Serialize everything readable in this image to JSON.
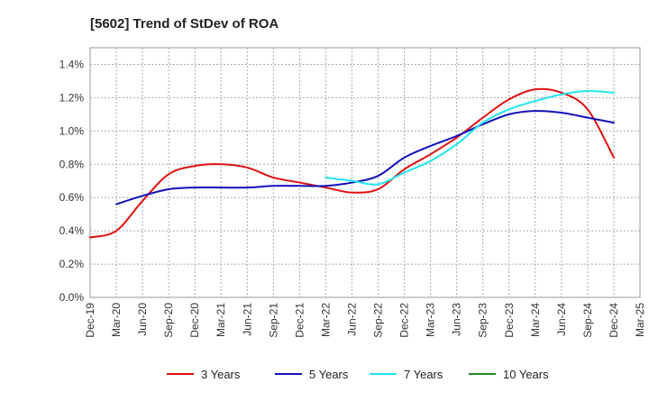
{
  "chart_data": {
    "type": "line",
    "title": "[5602]  Trend of StDev of ROA",
    "xlabel": "",
    "ylabel": "",
    "x_tick_labels": [
      "Dec-19",
      "Mar-20",
      "Jun-20",
      "Sep-20",
      "Dec-20",
      "Mar-21",
      "Jun-21",
      "Sep-21",
      "Dec-21",
      "Mar-22",
      "Jun-22",
      "Sep-22",
      "Dec-22",
      "Mar-23",
      "Jun-23",
      "Sep-23",
      "Dec-23",
      "Mar-24",
      "Jun-24",
      "Sep-24",
      "Dec-24",
      "Mar-25"
    ],
    "y_tick_labels": [
      "0.0%",
      "0.2%",
      "0.4%",
      "0.6%",
      "0.8%",
      "1.0%",
      "1.2%",
      "1.4%"
    ],
    "ylim": [
      0,
      1.5
    ],
    "grid": true,
    "legend_position": "bottom",
    "series": [
      {
        "name": "3 Years",
        "color": "#dd1111",
        "points": [
          [
            0,
            0.36
          ],
          [
            1,
            0.4
          ],
          [
            2,
            0.58
          ],
          [
            3,
            0.74
          ],
          [
            4,
            0.79
          ],
          [
            5,
            0.8
          ],
          [
            6,
            0.78
          ],
          [
            7,
            0.72
          ],
          [
            8,
            0.69
          ],
          [
            9,
            0.66
          ],
          [
            10,
            0.63
          ],
          [
            11,
            0.65
          ],
          [
            12,
            0.77
          ],
          [
            13,
            0.86
          ],
          [
            14,
            0.96
          ],
          [
            15,
            1.08
          ],
          [
            16,
            1.19
          ],
          [
            17,
            1.25
          ],
          [
            18,
            1.23
          ],
          [
            19,
            1.13
          ],
          [
            20,
            0.84
          ]
        ]
      },
      {
        "name": "5 Years",
        "color": "#1111bb",
        "points": [
          [
            1,
            0.56
          ],
          [
            2,
            0.61
          ],
          [
            3,
            0.65
          ],
          [
            4,
            0.66
          ],
          [
            5,
            0.66
          ],
          [
            6,
            0.66
          ],
          [
            7,
            0.67
          ],
          [
            8,
            0.67
          ],
          [
            9,
            0.67
          ],
          [
            10,
            0.69
          ],
          [
            11,
            0.73
          ],
          [
            12,
            0.84
          ],
          [
            13,
            0.91
          ],
          [
            14,
            0.97
          ],
          [
            15,
            1.04
          ],
          [
            16,
            1.1
          ],
          [
            17,
            1.12
          ],
          [
            18,
            1.11
          ],
          [
            19,
            1.08
          ],
          [
            20,
            1.05
          ]
        ]
      },
      {
        "name": "7 Years",
        "color": "#22e5ee",
        "points": [
          [
            9,
            0.72
          ],
          [
            10,
            0.7
          ],
          [
            11,
            0.68
          ],
          [
            12,
            0.75
          ],
          [
            13,
            0.82
          ],
          [
            14,
            0.92
          ],
          [
            15,
            1.05
          ],
          [
            16,
            1.13
          ],
          [
            17,
            1.18
          ],
          [
            18,
            1.22
          ],
          [
            19,
            1.24
          ],
          [
            20,
            1.23
          ]
        ]
      },
      {
        "name": "10 Years",
        "color": "#228822",
        "points": []
      }
    ]
  }
}
